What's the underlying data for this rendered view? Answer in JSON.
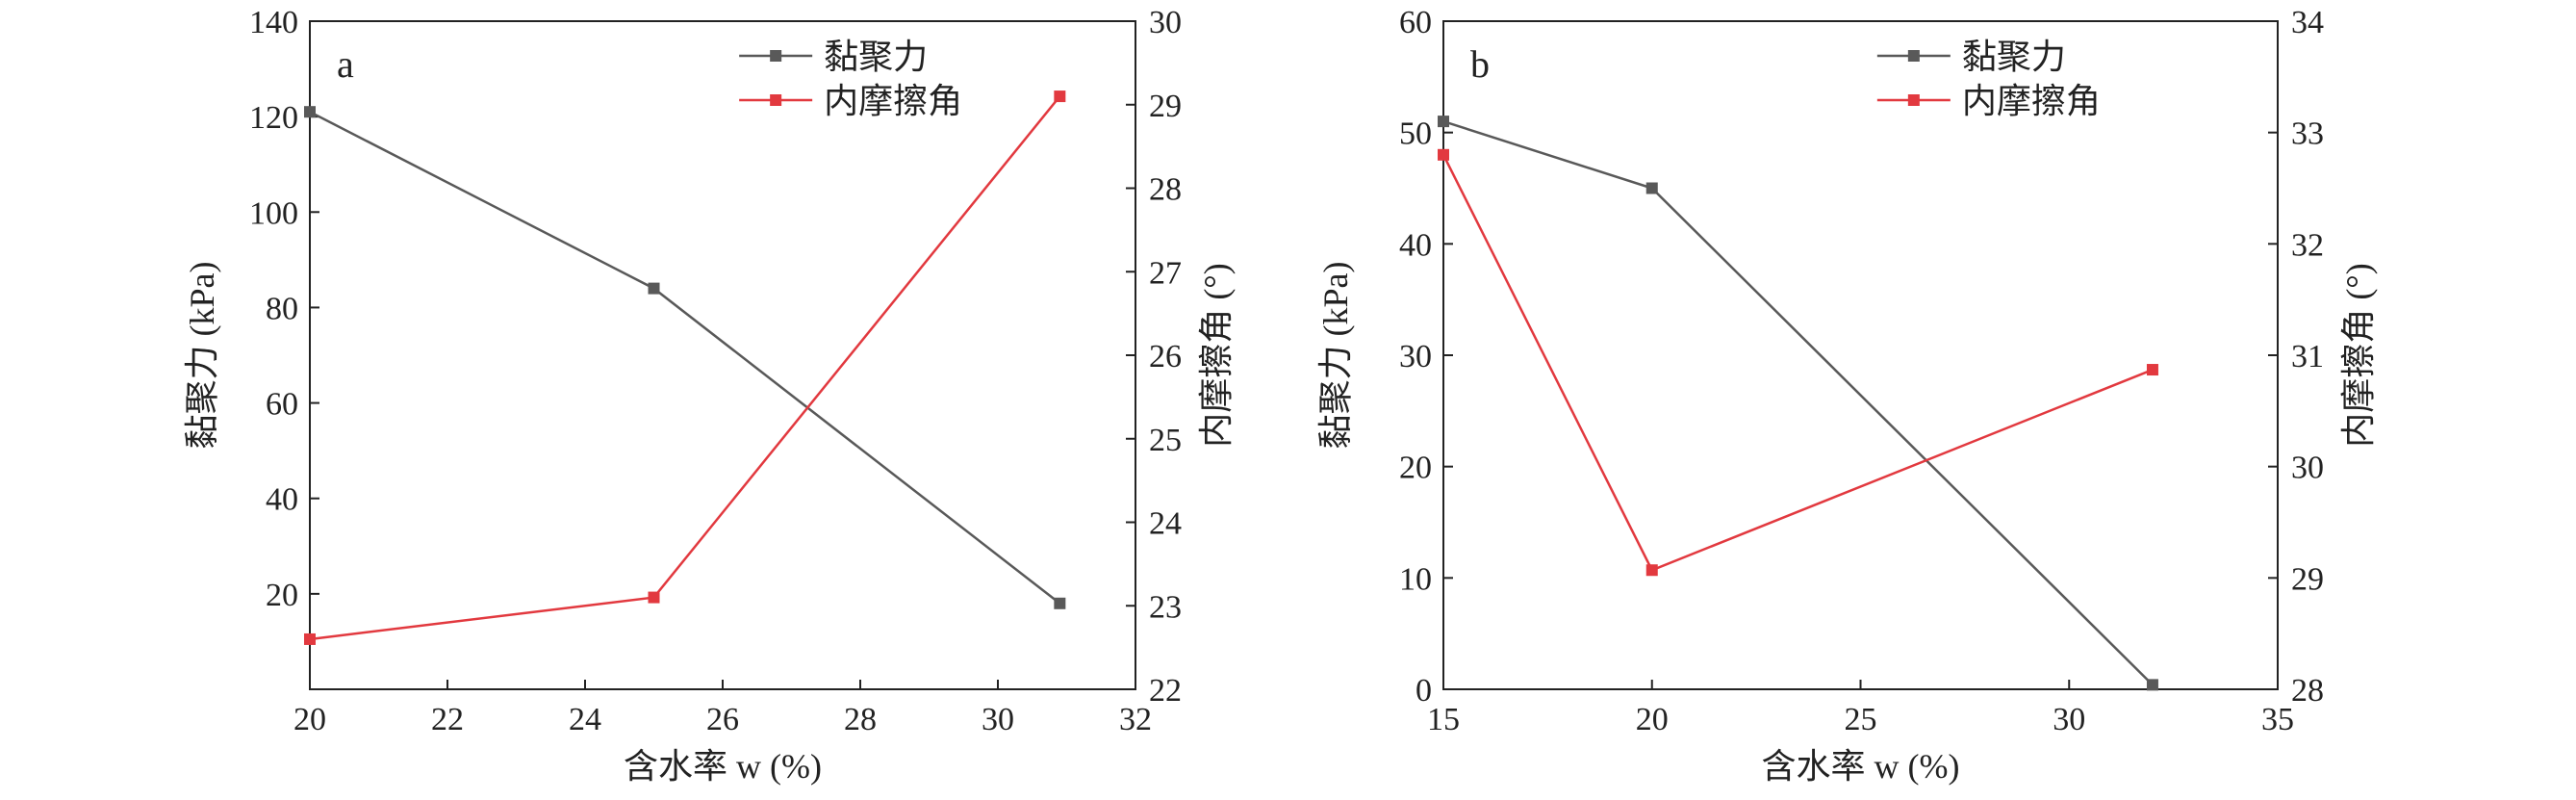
{
  "colors": {
    "cohesion": "#595959",
    "friction": "#e2393f",
    "axis": "#222222"
  },
  "chart_data": [
    {
      "type": "line",
      "panel_label": "a",
      "xlabel": "含水率 w (%)",
      "ylabel": "黏聚力 (kPa)",
      "y2label": "内摩擦角 (°)",
      "xlim": [
        20,
        32
      ],
      "ylim": [
        0,
        140
      ],
      "y2lim": [
        22,
        30
      ],
      "x_ticks": [
        "20",
        "22",
        "24",
        "26",
        "28",
        "30",
        "32"
      ],
      "y_ticks": [
        "20",
        "40",
        "60",
        "80",
        "100",
        "120",
        "140"
      ],
      "y2_ticks": [
        "22",
        "23",
        "24",
        "25",
        "26",
        "27",
        "28",
        "29",
        "30"
      ],
      "legend_position": "top-right",
      "series": [
        {
          "name": "黏聚力",
          "axis": "left",
          "color": "#595959",
          "x": [
            20,
            25,
            30.9
          ],
          "y": [
            121,
            84,
            18
          ]
        },
        {
          "name": "内摩擦角",
          "axis": "right",
          "color": "#e2393f",
          "x": [
            20,
            25,
            30.9
          ],
          "y": [
            22.6,
            23.1,
            29.1
          ]
        }
      ]
    },
    {
      "type": "line",
      "panel_label": "b",
      "xlabel": "含水率 w (%)",
      "ylabel": "黏聚力 (kPa)",
      "y2label": "内摩擦角 (°)",
      "xlim": [
        15,
        35
      ],
      "ylim": [
        0,
        60
      ],
      "y2lim": [
        28,
        34
      ],
      "x_ticks": [
        "15",
        "20",
        "25",
        "30",
        "35"
      ],
      "y_ticks": [
        "0",
        "10",
        "20",
        "30",
        "40",
        "50",
        "60"
      ],
      "y2_ticks": [
        "28",
        "29",
        "30",
        "31",
        "32",
        "33",
        "34"
      ],
      "legend_position": "top-right",
      "series": [
        {
          "name": "黏聚力",
          "axis": "left",
          "color": "#595959",
          "x": [
            15,
            20,
            32
          ],
          "y": [
            51,
            45,
            0.4
          ]
        },
        {
          "name": "内摩擦角",
          "axis": "right",
          "color": "#e2393f",
          "x": [
            15,
            20,
            32
          ],
          "y": [
            32.8,
            29.07,
            30.87
          ]
        }
      ]
    }
  ]
}
